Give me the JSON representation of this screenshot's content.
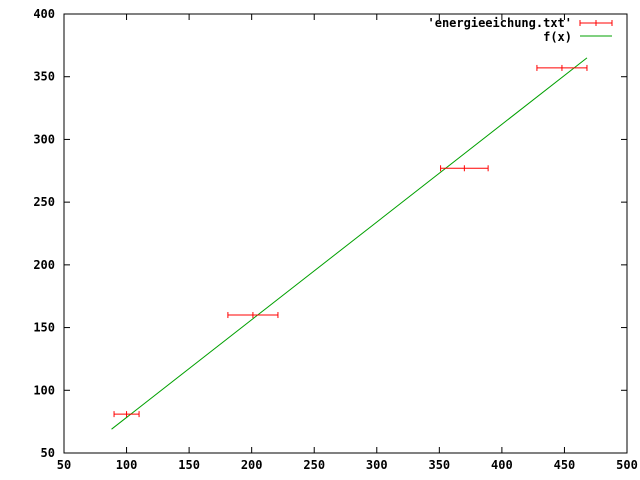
{
  "chart_data": {
    "type": "scatter",
    "title": "",
    "xlabel": "",
    "ylabel": "",
    "xlim": [
      50,
      500
    ],
    "ylim": [
      50,
      400
    ],
    "x_ticks": [
      50,
      100,
      150,
      200,
      250,
      300,
      350,
      400,
      450,
      500
    ],
    "y_ticks": [
      50,
      100,
      150,
      200,
      250,
      300,
      350,
      400
    ],
    "x_tick_labels": [
      "50",
      "100",
      "150",
      "200",
      "250",
      "300",
      "350",
      "400",
      "450",
      "500"
    ],
    "y_tick_labels": [
      "50",
      "100",
      "150",
      "200",
      "250",
      "300",
      "350",
      "400"
    ],
    "grid": false,
    "legend_position": "top-right",
    "series": [
      {
        "name": "'energieeichung.txt'",
        "kind": "xerrorbars",
        "color": "#ff0000",
        "points": [
          {
            "x": 100,
            "y": 81,
            "xerr": 10
          },
          {
            "x": 201,
            "y": 160,
            "xerr": 20
          },
          {
            "x": 370,
            "y": 277,
            "xerr": 19
          },
          {
            "x": 448,
            "y": 357,
            "xerr": 20
          }
        ]
      },
      {
        "name": "f(x)",
        "kind": "line",
        "color": "#00a000",
        "x": [
          88,
          468
        ],
        "y": [
          69,
          365
        ]
      }
    ]
  }
}
